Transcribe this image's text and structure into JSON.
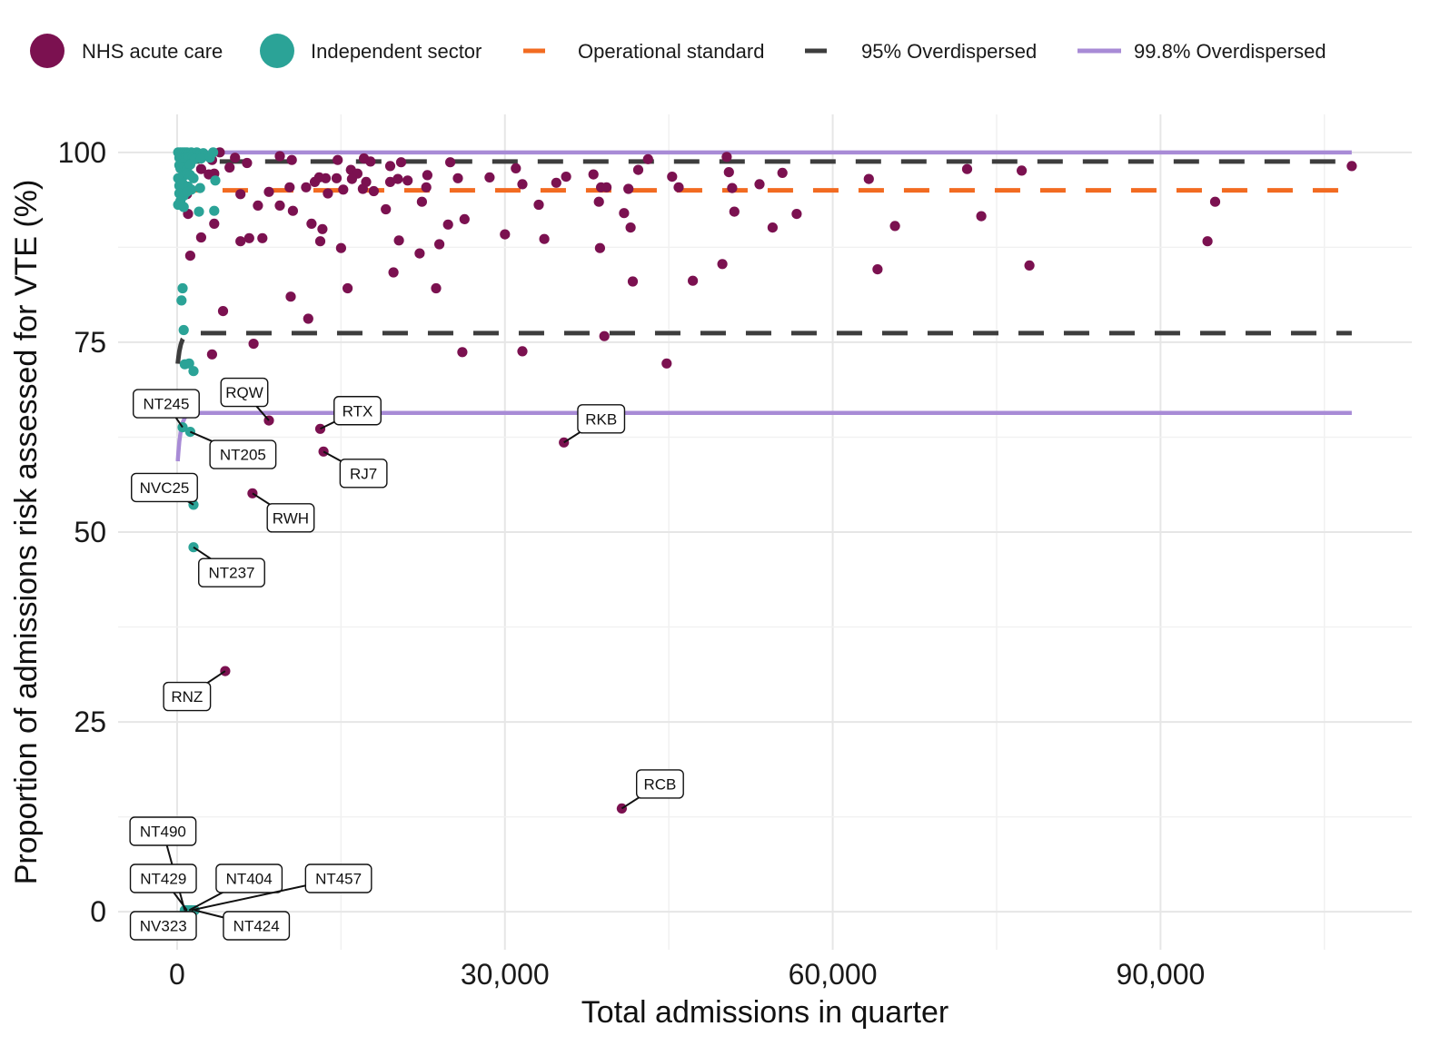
{
  "chart_data": {
    "type": "scatter",
    "xlabel": "Total admissions in quarter",
    "ylabel": "Proportion of admissions risk assessed for VTE (%)",
    "xlim": [
      -5400,
      113000
    ],
    "ylim": [
      -5,
      105
    ],
    "x_ticks": [
      0,
      30000,
      60000,
      90000
    ],
    "x_tick_labels": [
      "0",
      "30,000",
      "60,000",
      "90,000"
    ],
    "y_ticks": [
      0,
      25,
      50,
      75,
      100
    ],
    "y_tick_labels": [
      "0",
      "25",
      "50",
      "75",
      "100"
    ],
    "grid": true,
    "legend_position": "top",
    "legend": [
      {
        "key": "nhs",
        "label": "NHS acute care",
        "kind": "point",
        "color": "#7B1150"
      },
      {
        "key": "ind",
        "label": "Independent sector",
        "kind": "point",
        "color": "#2BA397"
      },
      {
        "key": "op",
        "label": "Operational standard",
        "kind": "dash",
        "color": "#F26B21"
      },
      {
        "key": "od95",
        "label": "95% Overdispersed",
        "kind": "dash",
        "color": "#3D3D3D"
      },
      {
        "key": "od998",
        "label": "99.8% Overdispersed",
        "kind": "solid",
        "color": "#A88BD6"
      }
    ],
    "lines": {
      "operational_standard": {
        "y": 95,
        "x_range": [
          0,
          107500
        ],
        "color": "#F26B21"
      },
      "od95": {
        "x_start": 0,
        "x_end": 107500,
        "upper": 98.8,
        "lower": 76.2,
        "upper_start": 97.5,
        "lower_start": 71.2,
        "color": "#3D3D3D"
      },
      "od998": {
        "x_start": 0,
        "x_end": 107500,
        "upper": 100,
        "lower": 65.7,
        "lower_start": 57.8,
        "color": "#A88BD6"
      }
    },
    "series": [
      {
        "name": "NHS acute care",
        "color": "#7B1150",
        "points": [
          [
            3900,
            100
          ],
          [
            3200,
            99
          ],
          [
            5300,
            99.3
          ],
          [
            6400,
            98.6
          ],
          [
            9400,
            99.5
          ],
          [
            10500,
            99
          ],
          [
            14700,
            99
          ],
          [
            17100,
            99.2
          ],
          [
            25000,
            98.7
          ],
          [
            50300,
            99.4
          ],
          [
            43100,
            99.1
          ],
          [
            107500,
            98.2
          ],
          [
            2200,
            97.8
          ],
          [
            4800,
            98
          ],
          [
            15900,
            97.7
          ],
          [
            16500,
            97.2
          ],
          [
            17700,
            98.8
          ],
          [
            19500,
            98.2
          ],
          [
            20500,
            98.7
          ],
          [
            22900,
            97
          ],
          [
            31000,
            97.9
          ],
          [
            42200,
            97.7
          ],
          [
            50500,
            97.4
          ],
          [
            55400,
            97.3
          ],
          [
            72300,
            97.8
          ],
          [
            77300,
            97.6
          ],
          [
            2900,
            97.1
          ],
          [
            3400,
            97.2
          ],
          [
            12600,
            96.1
          ],
          [
            13000,
            96.7
          ],
          [
            13600,
            96.6
          ],
          [
            14600,
            96.6
          ],
          [
            16000,
            96.5
          ],
          [
            17300,
            96.1
          ],
          [
            19500,
            96.1
          ],
          [
            20200,
            96.5
          ],
          [
            25700,
            96.6
          ],
          [
            28600,
            96.7
          ],
          [
            35600,
            96.8
          ],
          [
            38100,
            97.1
          ],
          [
            45300,
            96.8
          ],
          [
            63300,
            96.5
          ],
          [
            900,
            94.5
          ],
          [
            5800,
            94.5
          ],
          [
            8400,
            94.8
          ],
          [
            10300,
            95.4
          ],
          [
            11800,
            95.4
          ],
          [
            13800,
            94.6
          ],
          [
            15200,
            95.1
          ],
          [
            17000,
            95.2
          ],
          [
            18000,
            94.9
          ],
          [
            21100,
            96.3
          ],
          [
            22800,
            95.4
          ],
          [
            31600,
            95.8
          ],
          [
            34700,
            96
          ],
          [
            38800,
            95.4
          ],
          [
            39300,
            95.4
          ],
          [
            41300,
            95.2
          ],
          [
            45900,
            95.4
          ],
          [
            50800,
            95.3
          ],
          [
            53300,
            95.8
          ],
          [
            95000,
            93.5
          ],
          [
            1000,
            91.9
          ],
          [
            7400,
            93
          ],
          [
            9400,
            93
          ],
          [
            10600,
            92.3
          ],
          [
            12300,
            90.6
          ],
          [
            13300,
            89.9
          ],
          [
            19100,
            92.5
          ],
          [
            22400,
            93.5
          ],
          [
            24800,
            90.5
          ],
          [
            26300,
            91.2
          ],
          [
            33100,
            93.1
          ],
          [
            38600,
            93.5
          ],
          [
            40900,
            92
          ],
          [
            41500,
            90.1
          ],
          [
            51000,
            92.2
          ],
          [
            54500,
            90.1
          ],
          [
            56700,
            91.9
          ],
          [
            65700,
            90.3
          ],
          [
            73600,
            91.6
          ],
          [
            2200,
            88.8
          ],
          [
            3400,
            90.6
          ],
          [
            5800,
            88.3
          ],
          [
            6600,
            88.7
          ],
          [
            7800,
            88.7
          ],
          [
            13100,
            88.3
          ],
          [
            15000,
            87.4
          ],
          [
            20300,
            88.4
          ],
          [
            22200,
            86.7
          ],
          [
            24000,
            87.9
          ],
          [
            30000,
            89.2
          ],
          [
            33600,
            88.6
          ],
          [
            38700,
            87.4
          ],
          [
            94300,
            88.3
          ],
          [
            1200,
            86.4
          ],
          [
            19800,
            84.2
          ],
          [
            49900,
            85.3
          ],
          [
            64100,
            84.6
          ],
          [
            78000,
            85.1
          ],
          [
            15600,
            82.1
          ],
          [
            23700,
            82.1
          ],
          [
            41700,
            83
          ],
          [
            47200,
            83.1
          ],
          [
            10400,
            81
          ],
          [
            12000,
            78.1
          ],
          [
            4200,
            79.1
          ],
          [
            7000,
            74.8
          ],
          [
            3200,
            73.4
          ],
          [
            26100,
            73.7
          ],
          [
            31600,
            73.8
          ],
          [
            39100,
            75.8
          ],
          [
            44800,
            72.2
          ],
          [
            8400,
            64.7
          ],
          [
            13100,
            63.6
          ],
          [
            13400,
            60.6
          ],
          [
            35400,
            61.8
          ],
          [
            6900,
            55.1
          ],
          [
            4400,
            31.7
          ],
          [
            40700,
            13.6
          ]
        ]
      },
      {
        "name": "Independent sector",
        "color": "#2BA397",
        "points": [
          [
            100,
            100
          ],
          [
            300,
            100
          ],
          [
            500,
            100
          ],
          [
            700,
            100
          ],
          [
            900,
            100
          ],
          [
            1100,
            99.9
          ],
          [
            1300,
            100
          ],
          [
            1500,
            99.9
          ],
          [
            1800,
            100
          ],
          [
            2100,
            99.8
          ],
          [
            2400,
            99.9
          ],
          [
            3300,
            100
          ],
          [
            200,
            99.3
          ],
          [
            400,
            99.2
          ],
          [
            600,
            99.1
          ],
          [
            800,
            99.4
          ],
          [
            1000,
            99.2
          ],
          [
            1400,
            99.3
          ],
          [
            1600,
            99.1
          ],
          [
            2200,
            99.2
          ],
          [
            3000,
            99.3
          ],
          [
            200,
            98.3
          ],
          [
            300,
            97.9
          ],
          [
            500,
            98.5
          ],
          [
            700,
            98.1
          ],
          [
            900,
            97.8
          ],
          [
            1200,
            98.4
          ],
          [
            100,
            96.6
          ],
          [
            400,
            96.7
          ],
          [
            600,
            96.9
          ],
          [
            900,
            97.2
          ],
          [
            1200,
            97
          ],
          [
            1500,
            96.6
          ],
          [
            3500,
            96.3
          ],
          [
            200,
            95.6
          ],
          [
            500,
            95.9
          ],
          [
            700,
            95.2
          ],
          [
            1000,
            95.5
          ],
          [
            1300,
            95.1
          ],
          [
            2100,
            95.3
          ],
          [
            200,
            94.6
          ],
          [
            600,
            94.3
          ],
          [
            900,
            94.8
          ],
          [
            300,
            93.6
          ],
          [
            100,
            93.1
          ],
          [
            600,
            92.8
          ],
          [
            2000,
            92.2
          ],
          [
            3400,
            92.3
          ],
          [
            500,
            82.1
          ],
          [
            400,
            80.5
          ],
          [
            600,
            76.6
          ],
          [
            700,
            72.1
          ],
          [
            1100,
            72.2
          ],
          [
            1500,
            71.2
          ],
          [
            500,
            63.8
          ],
          [
            1200,
            63.2
          ],
          [
            1500,
            53.6
          ],
          [
            1500,
            48
          ],
          [
            700,
            0.2
          ],
          [
            900,
            0.2
          ],
          [
            1100,
            0.2
          ],
          [
            1300,
            0.2
          ],
          [
            1600,
            0.2
          ]
        ]
      }
    ],
    "annotations": [
      {
        "text": "NT245",
        "x": 500,
        "y": 63.8
      },
      {
        "text": "RQW",
        "x": 8400,
        "y": 64.7
      },
      {
        "text": "RTX",
        "x": 13100,
        "y": 63.6
      },
      {
        "text": "NT205",
        "x": 1200,
        "y": 63.2
      },
      {
        "text": "RKB",
        "x": 35400,
        "y": 61.8
      },
      {
        "text": "RJ7",
        "x": 13400,
        "y": 60.6
      },
      {
        "text": "NVC25",
        "x": 1500,
        "y": 53.6
      },
      {
        "text": "RWH",
        "x": 6900,
        "y": 55.1
      },
      {
        "text": "NT237",
        "x": 1500,
        "y": 48
      },
      {
        "text": "RNZ",
        "x": 4400,
        "y": 31.7
      },
      {
        "text": "RCB",
        "x": 40700,
        "y": 13.6
      },
      {
        "text": "NT490",
        "x": 700,
        "y": 0.2
      },
      {
        "text": "NT429",
        "x": 900,
        "y": 0.2
      },
      {
        "text": "NT404",
        "x": 1100,
        "y": 0.2
      },
      {
        "text": "NT457",
        "x": 1300,
        "y": 0.2
      },
      {
        "text": "NV323",
        "x": 900,
        "y": 0.2
      },
      {
        "text": "NT424",
        "x": 1600,
        "y": 0.2
      }
    ]
  }
}
